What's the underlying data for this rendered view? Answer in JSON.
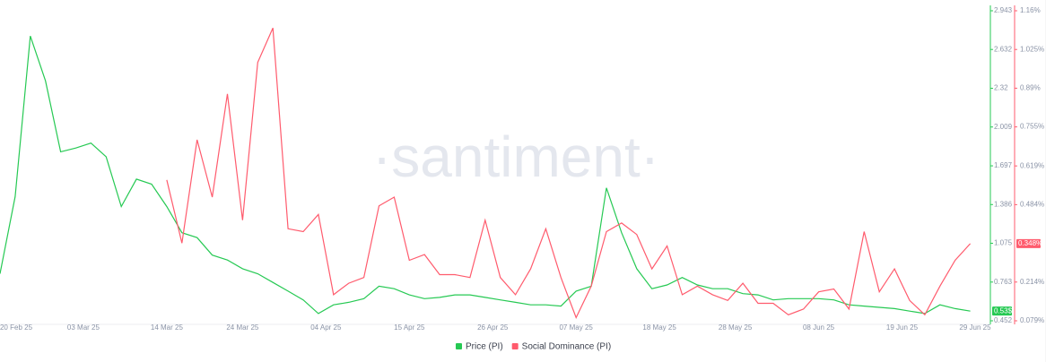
{
  "chart_data": {
    "type": "line",
    "watermark": "·santiment·",
    "x": [
      "2025-02-20",
      "2025-02-22",
      "2025-02-24",
      "2025-02-26",
      "2025-02-28",
      "2025-03-02",
      "2025-03-04",
      "2025-03-06",
      "2025-03-08",
      "2025-03-10",
      "2025-03-12",
      "2025-03-14",
      "2025-03-16",
      "2025-03-18",
      "2025-03-20",
      "2025-03-22",
      "2025-03-24",
      "2025-03-26",
      "2025-03-28",
      "2025-03-30",
      "2025-04-01",
      "2025-04-03",
      "2025-04-05",
      "2025-04-07",
      "2025-04-09",
      "2025-04-11",
      "2025-04-13",
      "2025-04-15",
      "2025-04-17",
      "2025-04-19",
      "2025-04-21",
      "2025-04-23",
      "2025-04-25",
      "2025-04-27",
      "2025-04-29",
      "2025-05-01",
      "2025-05-03",
      "2025-05-05",
      "2025-05-07",
      "2025-05-09",
      "2025-05-11",
      "2025-05-13",
      "2025-05-15",
      "2025-05-17",
      "2025-05-19",
      "2025-05-21",
      "2025-05-23",
      "2025-05-25",
      "2025-05-27",
      "2025-05-29",
      "2025-05-31",
      "2025-06-02",
      "2025-06-04",
      "2025-06-06",
      "2025-06-08",
      "2025-06-10",
      "2025-06-12",
      "2025-06-14",
      "2025-06-16",
      "2025-06-18",
      "2025-06-20",
      "2025-06-22",
      "2025-06-24",
      "2025-06-26",
      "2025-06-28"
    ],
    "xlim": [
      "2025-02-20",
      "2025-06-29"
    ],
    "xticks": [
      {
        "value": "2025-02-20",
        "label": "20 Feb 25"
      },
      {
        "value": "2025-03-03",
        "label": "03 Mar 25"
      },
      {
        "value": "2025-03-14",
        "label": "14 Mar 25"
      },
      {
        "value": "2025-03-24",
        "label": "24 Mar 25"
      },
      {
        "value": "2025-04-04",
        "label": "04 Apr 25"
      },
      {
        "value": "2025-04-15",
        "label": "15 Apr 25"
      },
      {
        "value": "2025-04-26",
        "label": "26 Apr 25"
      },
      {
        "value": "2025-05-07",
        "label": "07 May 25"
      },
      {
        "value": "2025-05-18",
        "label": "18 May 25"
      },
      {
        "value": "2025-05-28",
        "label": "28 May 25"
      },
      {
        "value": "2025-06-08",
        "label": "08 Jun 25"
      },
      {
        "value": "2025-06-19",
        "label": "19 Jun 25"
      },
      {
        "value": "2025-06-29",
        "label": "29 Jun 25"
      }
    ],
    "ylim": [
      0.452,
      2.943
    ],
    "yticks": [
      0.452,
      0.763,
      1.075,
      1.386,
      1.697,
      2.009,
      2.32,
      2.632,
      2.943
    ],
    "y2lim": [
      0.079,
      1.16
    ],
    "y2ticks": [
      {
        "value": 0.079,
        "label": "0.079%"
      },
      {
        "value": 0.214,
        "label": "0.214%"
      },
      {
        "value": 0.484,
        "label": "0.484%"
      },
      {
        "value": 0.619,
        "label": "0.619%"
      },
      {
        "value": 0.755,
        "label": "0.755%"
      },
      {
        "value": 0.89,
        "label": "0.89%"
      },
      {
        "value": 1.025,
        "label": "1.025%"
      },
      {
        "value": 1.16,
        "label": "1.16%"
      }
    ],
    "series": [
      {
        "name": "Price (PI)",
        "color": "#26c953",
        "current_label": "0.53$",
        "values": [
          0.83,
          1.45,
          2.74,
          2.38,
          1.81,
          1.84,
          1.88,
          1.77,
          1.37,
          1.59,
          1.55,
          1.37,
          1.16,
          1.12,
          0.98,
          0.94,
          0.87,
          0.83,
          0.76,
          0.69,
          0.62,
          0.51,
          0.58,
          0.6,
          0.63,
          0.73,
          0.71,
          0.66,
          0.63,
          0.64,
          0.66,
          0.66,
          0.64,
          0.62,
          0.6,
          0.58,
          0.58,
          0.57,
          0.69,
          0.73,
          1.52,
          1.16,
          0.87,
          0.71,
          0.74,
          0.8,
          0.74,
          0.71,
          0.71,
          0.67,
          0.66,
          0.62,
          0.63,
          0.63,
          0.63,
          0.62,
          0.58,
          0.57,
          0.56,
          0.55,
          0.53,
          0.51,
          0.58,
          0.55,
          0.53
        ]
      },
      {
        "name": "Social Dominance (PI)",
        "color": "#ff5b6d",
        "axis": "y2",
        "current_label": "0.348%",
        "values": [
          null,
          null,
          null,
          null,
          null,
          null,
          null,
          null,
          null,
          null,
          null,
          0.57,
          0.35,
          0.71,
          0.51,
          0.87,
          0.43,
          0.98,
          1.1,
          0.4,
          0.39,
          0.45,
          0.17,
          0.21,
          0.23,
          0.48,
          0.51,
          0.29,
          0.31,
          0.24,
          0.24,
          0.23,
          0.43,
          0.23,
          0.17,
          0.26,
          0.4,
          0.23,
          0.09,
          0.2,
          0.39,
          0.42,
          0.38,
          0.26,
          0.34,
          0.17,
          0.2,
          0.17,
          0.15,
          0.21,
          0.14,
          0.14,
          0.1,
          0.12,
          0.18,
          0.19,
          0.12,
          0.39,
          0.18,
          0.26,
          0.15,
          0.1,
          0.2,
          0.29,
          0.348
        ]
      }
    ]
  }
}
